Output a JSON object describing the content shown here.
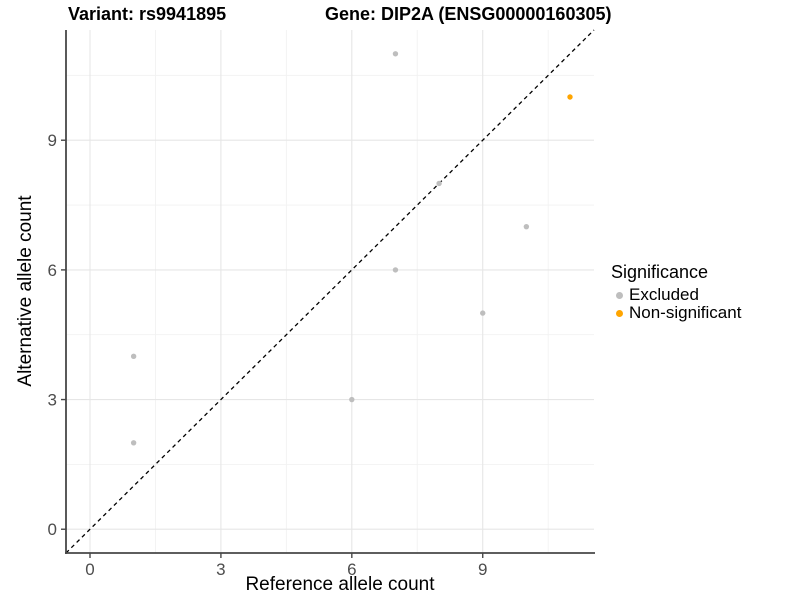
{
  "titles": {
    "variant": "Variant: rs9941895",
    "gene": "Gene: DIP2A (ENSG00000160305)"
  },
  "chart_data": {
    "type": "scatter",
    "xlabel": "Reference allele count",
    "ylabel": "Alternative allele count",
    "xlim": [
      -0.55,
      11.55
    ],
    "ylim": [
      -0.55,
      11.55
    ],
    "x_ticks": [
      0,
      3,
      6,
      9
    ],
    "y_ticks": [
      0,
      3,
      6,
      9
    ],
    "x_minor_ticks": [
      1.5,
      4.5,
      7.5,
      10.5
    ],
    "y_minor_ticks": [
      1.5,
      4.5,
      7.5,
      10.5
    ],
    "grid": "major+minor on white background",
    "identity_line": {
      "style": "dashed",
      "slope": 1,
      "intercept": 0,
      "color": "#000000"
    },
    "series": [
      {
        "name": "Excluded",
        "color": "#BEBEBE",
        "points": [
          [
            1,
            2
          ],
          [
            1,
            4
          ],
          [
            6,
            3
          ],
          [
            7,
            6
          ],
          [
            7,
            11
          ],
          [
            8,
            8
          ],
          [
            9,
            5
          ],
          [
            10,
            7
          ]
        ]
      },
      {
        "name": "Non-significant",
        "color": "#FFA500",
        "points": [
          [
            11,
            10
          ]
        ]
      }
    ],
    "legend": {
      "title": "Significance",
      "position": "right",
      "items": [
        {
          "label": "Excluded",
          "color": "#BEBEBE"
        },
        {
          "label": "Non-significant",
          "color": "#FFA500"
        }
      ]
    }
  },
  "style": {
    "background": "#FFFFFF",
    "grid_major": "#E6E6E6",
    "grid_minor": "#F2F2F2",
    "axis_line": "#474747",
    "tick_mark": "#474747",
    "tick_label_color": "#4D4D4D",
    "point_gray": "#BEBEBE",
    "point_orange": "#FFA500"
  }
}
